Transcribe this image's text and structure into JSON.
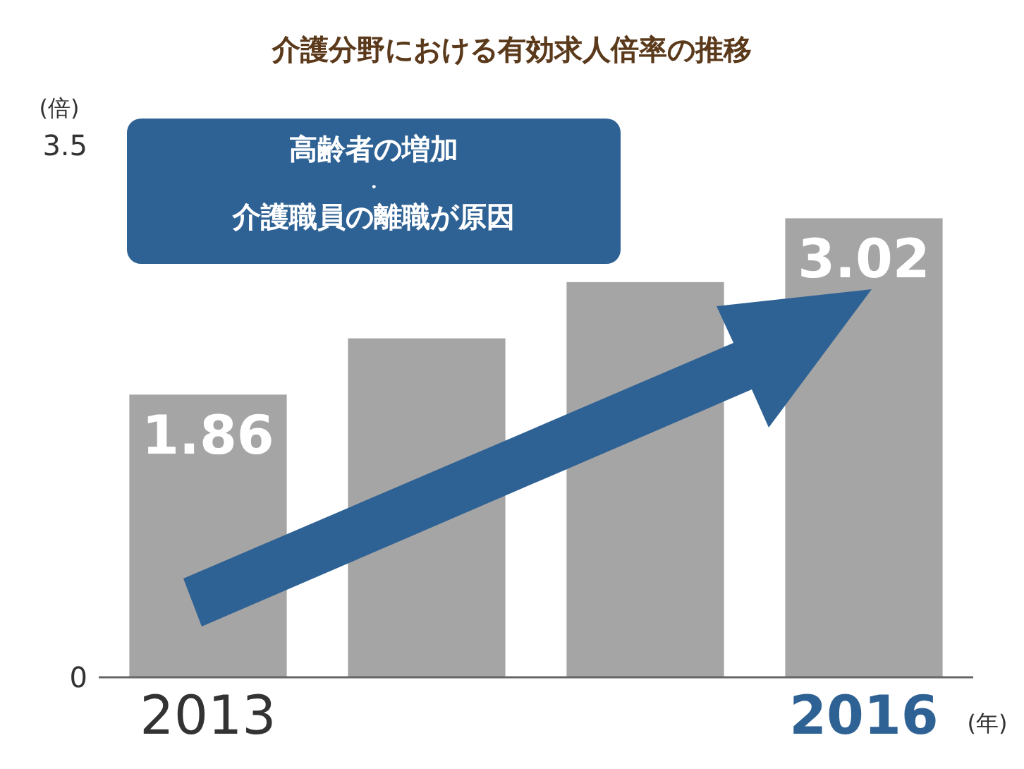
{
  "chart_data": {
    "type": "bar",
    "title": "介護分野における有効求人倍率の推移",
    "ylabel": "(倍)",
    "xlabel": "(年)",
    "categories": [
      "2013",
      null,
      null,
      "2016"
    ],
    "values": [
      1.86,
      2.23,
      2.6,
      3.02
    ],
    "value_labels": [
      "1.86",
      null,
      null,
      "3.02"
    ],
    "color": "#a5a5a5",
    "ylim": [
      0,
      3.5
    ],
    "yticks": [
      0,
      3.5
    ],
    "grid": false,
    "annotations": [
      "高齢者の増加",
      "・",
      "介護職員の離職が原因"
    ]
  }
}
